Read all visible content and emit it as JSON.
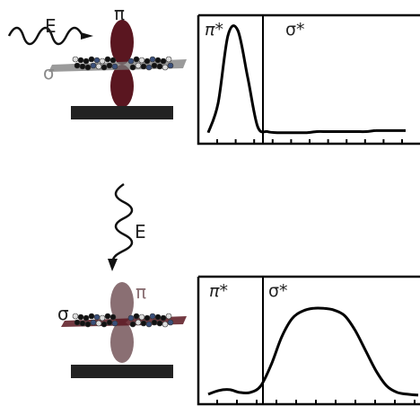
{
  "colors": {
    "pi_orbital_top": "#5a1620",
    "pi_orbital_bottom": "#7a969c",
    "pi_label_bottom": "#8a6f73",
    "sigma_label_top": "#8a8a8a",
    "sigma_plane": "#7a7a7a",
    "substrate": "#222222",
    "curve": "#000000",
    "atom_dark": "#111111",
    "atom_blue": "#3a4f7a",
    "atom_light": "#dddddd"
  },
  "top": {
    "e_label": "E",
    "pi_label": "π",
    "sigma_label": "σ",
    "plot": {
      "pi_star_label": "π*",
      "sigma_star_label": "σ*"
    }
  },
  "bottom": {
    "e_label": "E",
    "pi_label": "π",
    "sigma_label": "σ",
    "plot": {
      "pi_star_label": "π*",
      "sigma_star_label": "σ*"
    }
  },
  "chart_data": [
    {
      "type": "line",
      "title": "",
      "xlabel": "",
      "ylabel": "",
      "regions": [
        "π*",
        "σ*"
      ],
      "x": [
        0,
        1,
        2,
        3,
        4,
        5,
        6,
        7,
        8,
        9,
        10,
        11,
        12,
        13,
        14,
        15,
        16,
        17,
        18,
        19,
        20
      ],
      "series": [
        {
          "values": [
            0.02,
            0.3,
            0.95,
            1.0,
            0.55,
            0.08,
            0.03,
            0.02,
            0.02,
            0.02,
            0.02,
            0.03,
            0.03,
            0.03,
            0.03,
            0.03,
            0.03,
            0.04,
            0.04,
            0.04,
            0.04
          ]
        }
      ],
      "divider_x": 5.3,
      "ylim": [
        0,
        1.05
      ],
      "xticks": 11
    },
    {
      "type": "line",
      "title": "",
      "xlabel": "",
      "ylabel": "",
      "regions": [
        "π*",
        "σ*"
      ],
      "x": [
        0,
        1,
        2,
        3,
        4,
        5,
        6,
        7,
        8,
        9,
        10,
        11,
        12,
        13,
        14,
        15,
        16,
        17,
        18,
        19,
        20
      ],
      "series": [
        {
          "values": [
            0.03,
            0.07,
            0.08,
            0.05,
            0.05,
            0.12,
            0.35,
            0.65,
            0.85,
            0.93,
            0.96,
            0.96,
            0.94,
            0.88,
            0.72,
            0.5,
            0.28,
            0.12,
            0.05,
            0.03,
            0.02
          ]
        }
      ],
      "divider_x": 5.3,
      "ylim": [
        0,
        1.05
      ],
      "xticks": 11
    }
  ]
}
